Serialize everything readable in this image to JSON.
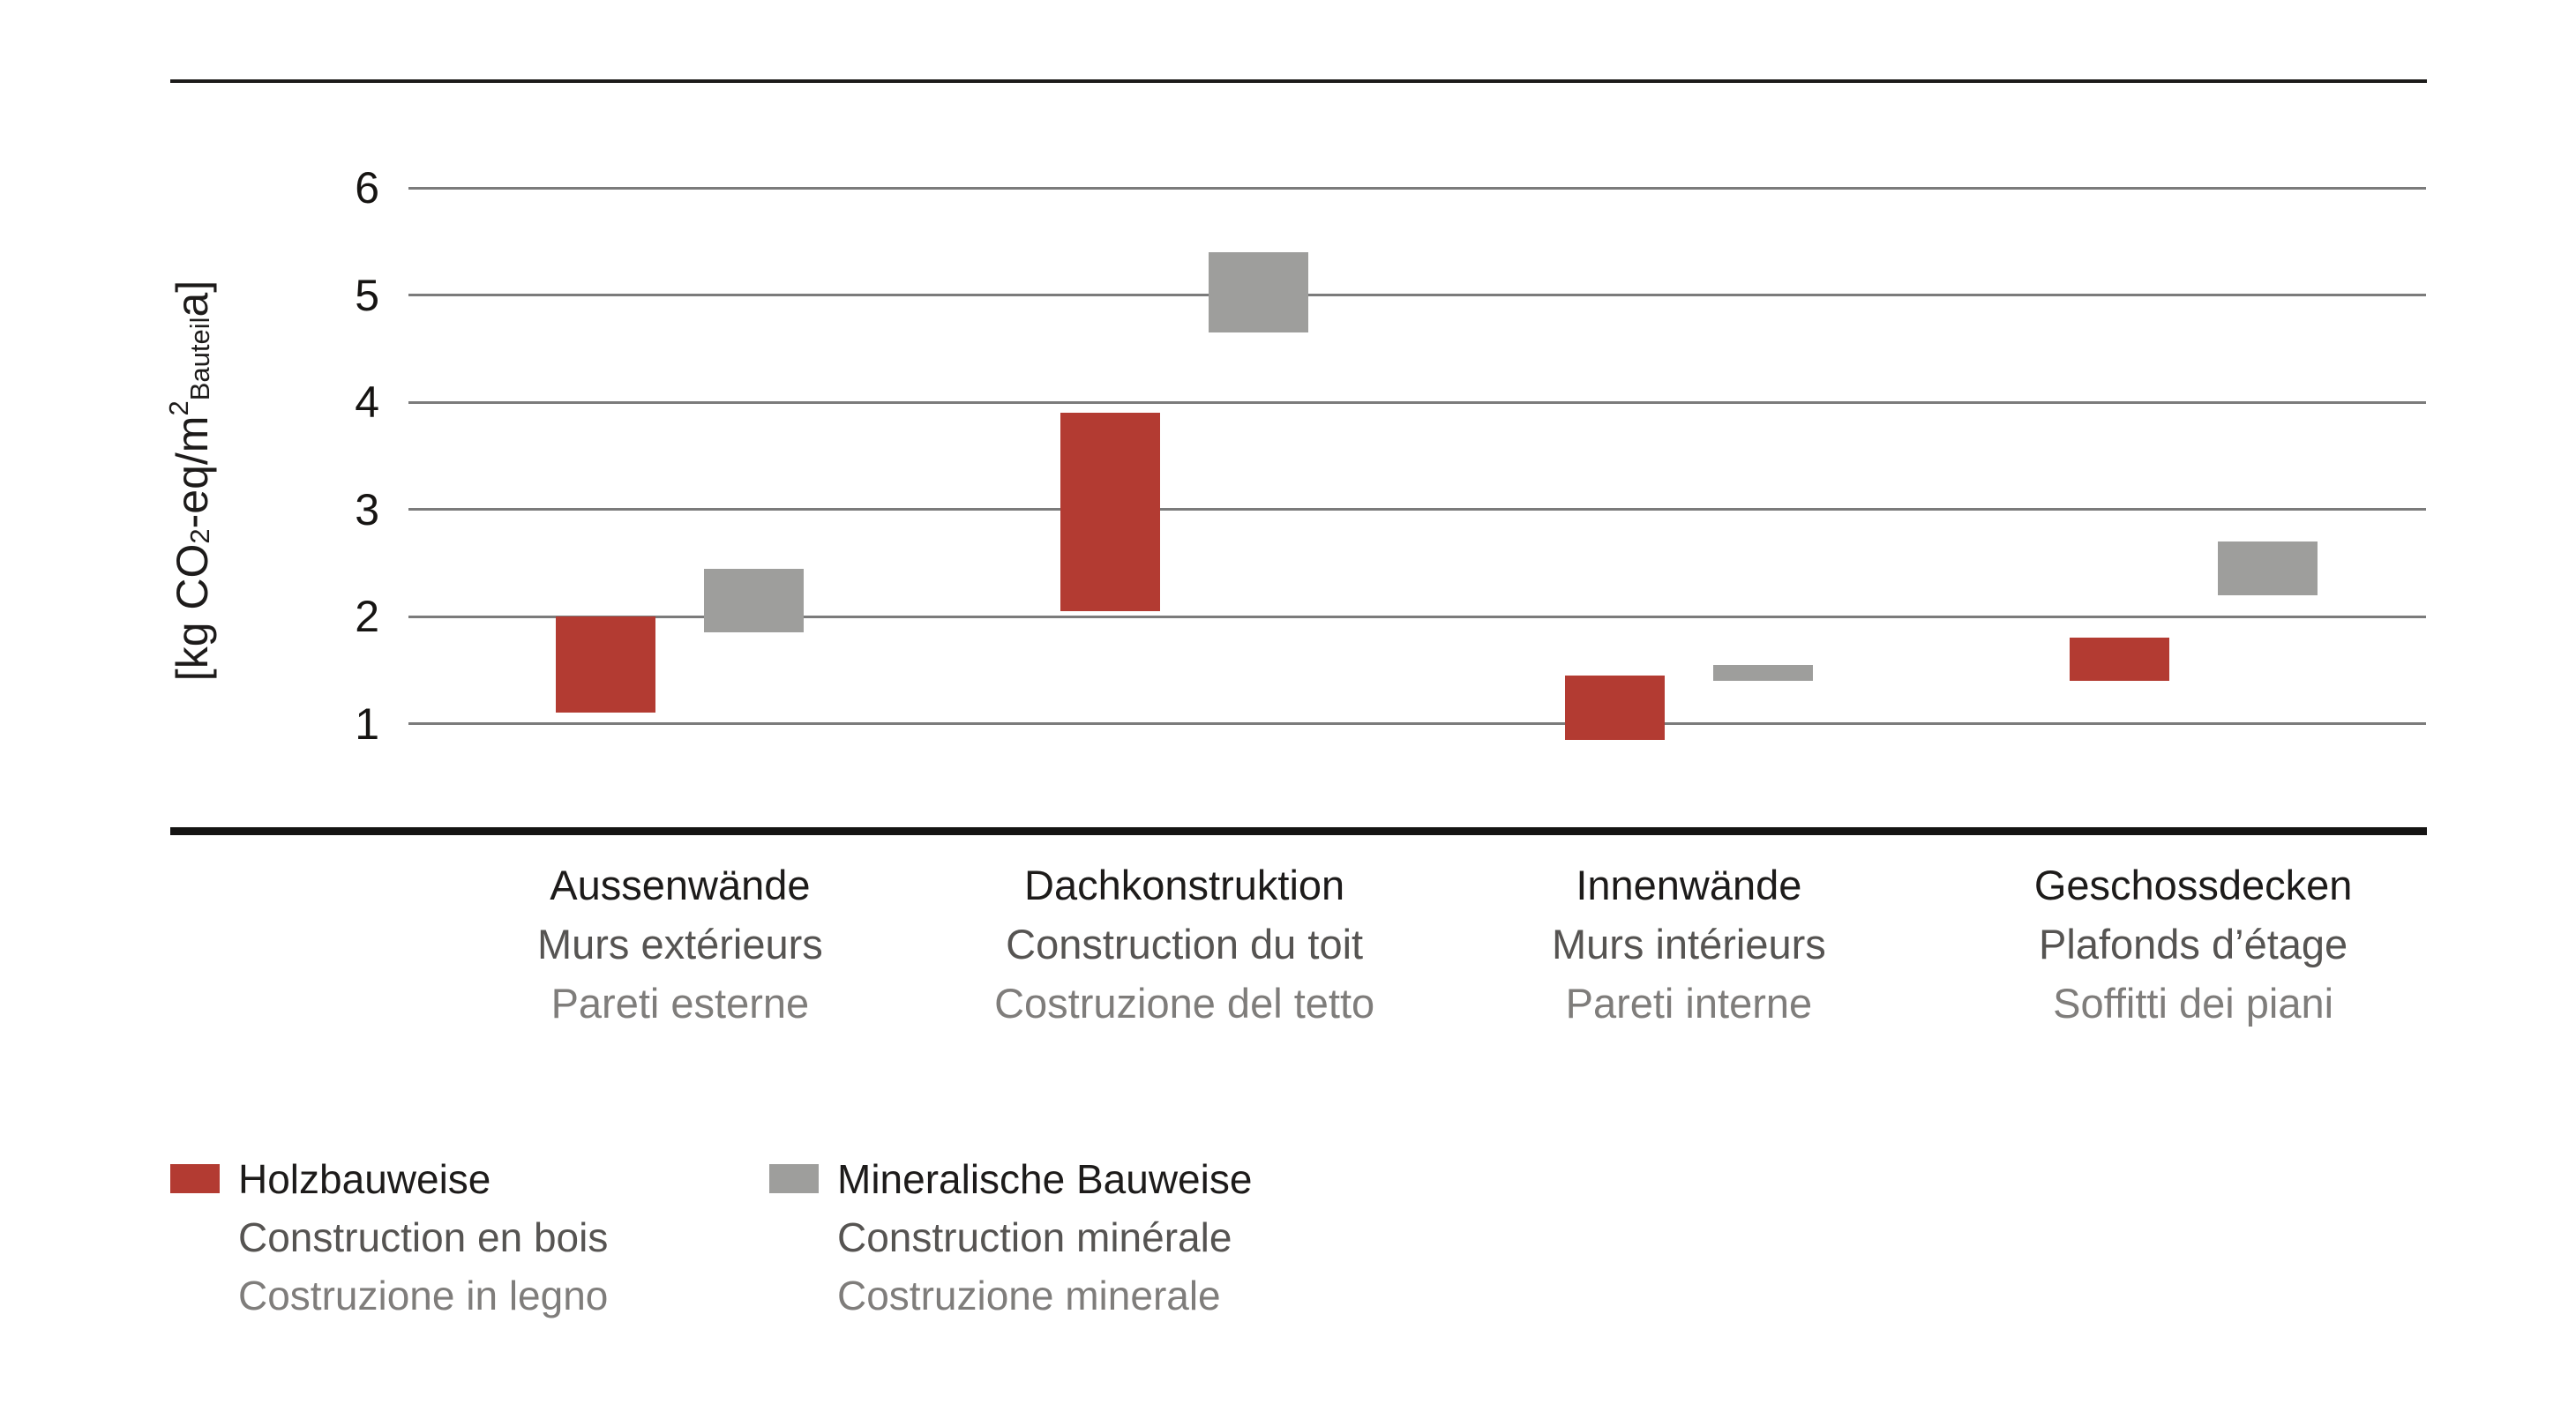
{
  "chart_data": {
    "type": "bar",
    "variant": "floating-range-columns",
    "title": "",
    "ylabel_plain": "[kg CO2-eq/m2 Bauteil a]",
    "ylabel_segments": [
      {
        "text": "[kg CO",
        "style": "normal"
      },
      {
        "text": "2",
        "style": "sub"
      },
      {
        "text": "-eq/m",
        "style": "normal"
      },
      {
        "text": "2",
        "style": "sup"
      },
      {
        "text": " Bauteil",
        "style": "sub"
      },
      {
        "text": " a]",
        "style": "normal"
      }
    ],
    "ylim": [
      0,
      7
    ],
    "yticks": [
      1,
      2,
      3,
      4,
      5,
      6
    ],
    "grid": "horizontal",
    "legend_position": "bottom-left",
    "categories": [
      {
        "de": "Aussenwände",
        "fr": "Murs extérieurs",
        "it": "Pareti esterne"
      },
      {
        "de": "Dachkonstruktion",
        "fr": "Construction du toit",
        "it": "Costruzione del tetto"
      },
      {
        "de": "Innenwände",
        "fr": "Murs intérieurs",
        "it": "Pareti interne"
      },
      {
        "de": "Geschossdecken",
        "fr": "Plafonds d’étage",
        "it": "Soffitti dei piani"
      }
    ],
    "series": [
      {
        "name_de": "Holzbauweise",
        "name_fr": "Construction en bois",
        "name_it": "Costruzione in legno",
        "color": "#B33B32",
        "ranges": [
          [
            1.1,
            2.0
          ],
          [
            2.05,
            3.9
          ],
          [
            0.85,
            1.45
          ],
          [
            1.4,
            1.8
          ]
        ]
      },
      {
        "name_de": "Mineralische Bauweise",
        "name_fr": "Construction minérale",
        "name_it": "Costruzione minerale",
        "color": "#9E9E9C",
        "ranges": [
          [
            1.85,
            2.45
          ],
          [
            4.65,
            5.4
          ],
          [
            1.4,
            1.55
          ],
          [
            2.2,
            2.7
          ]
        ]
      }
    ]
  },
  "colors": {
    "background": "#FFFFFF",
    "grid_line": "#7B7B7B",
    "axis_line": "#151413",
    "top_border": "#1C1B1A",
    "tick_text": "#161412",
    "label_primary": "#1D1B1A",
    "label_secondary": "#565452",
    "label_tertiary": "#7F7D7B"
  }
}
